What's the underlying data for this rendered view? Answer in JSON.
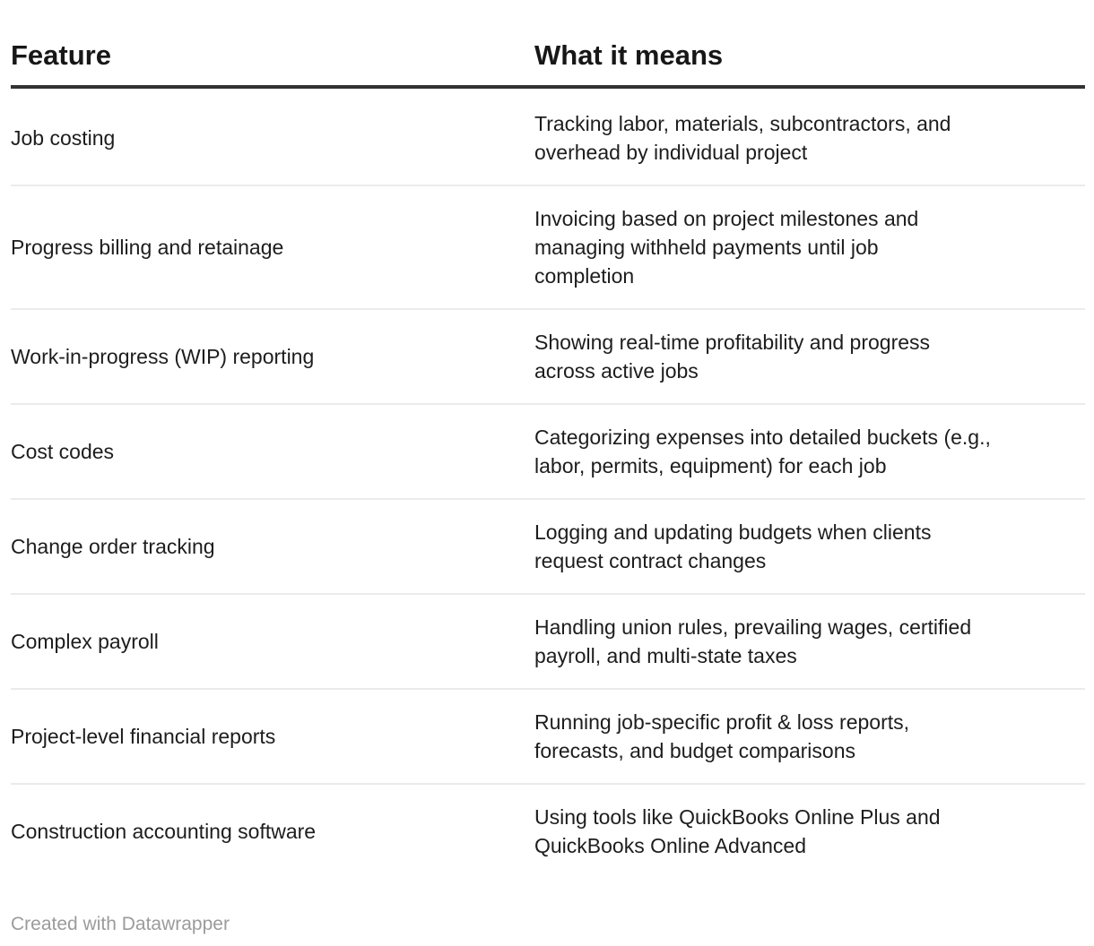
{
  "chart_data": {
    "type": "table",
    "columns": [
      "Feature",
      "What it means"
    ],
    "rows": [
      {
        "feature": "Job costing",
        "meaning": "Tracking labor, materials, subcontractors, and overhead by individual project",
        "meaning_lines": [
          "Tracking labor, materials, subcontractors, and",
          "overhead by individual project"
        ]
      },
      {
        "feature": "Progress billing and retainage",
        "meaning": "Invoicing based on project milestones and managing withheld payments until job completion",
        "meaning_lines": [
          "Invoicing based on project milestones and",
          "managing withheld payments until job",
          "completion"
        ]
      },
      {
        "feature": "Work-in-progress (WIP) reporting",
        "meaning": "Showing real-time profitability and progress across active jobs",
        "meaning_lines": [
          "Showing real-time profitability and progress",
          "across active jobs"
        ]
      },
      {
        "feature": "Cost codes",
        "meaning": "Categorizing expenses into detailed buckets (e.g., labor, permits, equipment) for each job",
        "meaning_lines": [
          "Categorizing expenses into detailed buckets (e.g.,",
          "labor, permits, equipment) for each job"
        ]
      },
      {
        "feature": "Change order tracking",
        "meaning": "Logging and updating budgets when clients request contract changes",
        "meaning_lines": [
          "Logging and updating budgets when clients",
          "request contract changes"
        ]
      },
      {
        "feature": "Complex payroll",
        "meaning": "Handling union rules, prevailing wages, certified payroll, and multi-state taxes",
        "meaning_lines": [
          "Handling union rules, prevailing wages, certified",
          "payroll, and multi-state taxes"
        ]
      },
      {
        "feature": "Project-level financial reports",
        "meaning": "Running job-specific profit & loss reports, forecasts, and budget comparisons",
        "meaning_lines": [
          "Running job-specific profit & loss reports,",
          "forecasts, and budget comparisons"
        ]
      },
      {
        "feature": "Construction accounting software",
        "meaning": "Using tools like QuickBooks Online Plus and QuickBooks Online Advanced",
        "meaning_lines": [
          "Using tools like QuickBooks Online Plus and",
          "QuickBooks Online Advanced"
        ]
      }
    ],
    "title": "",
    "legend_position": "none",
    "grid": "horizontal-row-dividers"
  },
  "footer": {
    "credit": "Created with Datawrapper"
  },
  "colors": {
    "background": "#ffffff",
    "body_text": "#1d1d1d",
    "header_text": "#171717",
    "header_rule": "#333333",
    "row_divider": "#ebebeb",
    "credit_text": "#9b9b9b"
  }
}
